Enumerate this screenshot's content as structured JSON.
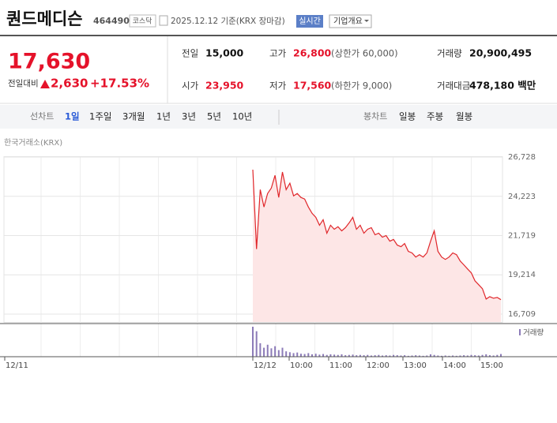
{
  "header": {
    "name": "퀀드메디슨",
    "code": "464490",
    "market": "코스닥",
    "date": "2025.12.12 기준(KRX 장마감)",
    "realtime": "실시간",
    "overview": "기업개요"
  },
  "summary": {
    "price": "17,630",
    "change_label": "전일대비",
    "change": "2,630",
    "change_rate": "+17.53%",
    "rows": [
      [
        {
          "label": "전일",
          "value": "15,000"
        },
        {
          "label": "고가",
          "value": "26,800",
          "extra": "(상한가 60,000)"
        },
        {
          "label": "거래량",
          "value": "20,900,495"
        }
      ],
      [
        {
          "label": "시가",
          "value": "23,950"
        },
        {
          "label": "저가",
          "value": "17,560",
          "extra": "(하한가 9,000)"
        },
        {
          "label": "거래대금",
          "value": "478,180 백만"
        }
      ]
    ]
  },
  "tabs": {
    "line_label": "선차트",
    "line": [
      "1일",
      "1주일",
      "3개월",
      "1년",
      "3년",
      "5년",
      "10년"
    ],
    "candle_label": "봉차트",
    "candle": [
      "일봉",
      "주봉",
      "월봉"
    ]
  },
  "chart_data": {
    "type": "line",
    "source": "한국거래소(KRX)",
    "x_tick_labels": [
      "12/11",
      "12/12",
      "10:00",
      "11:00",
      "12:00",
      "13:00",
      "14:00",
      "15:00"
    ],
    "series": [
      {
        "name": "price",
        "color": "#e0262a",
        "values": [
          25920,
          20860,
          24650,
          23540,
          24400,
          24750,
          25560,
          24150,
          25770,
          24650,
          25060,
          24250,
          24400,
          24150,
          24050,
          23540,
          23140,
          22880,
          22380,
          22730,
          21870,
          22380,
          22120,
          22280,
          22020,
          22220,
          22530,
          22880,
          22120,
          22380,
          21870,
          22120,
          22220,
          21770,
          21870,
          21620,
          21720,
          21360,
          21470,
          21110,
          21010,
          21210,
          20710,
          20610,
          20350,
          20500,
          20350,
          20610,
          21360,
          22020,
          20710,
          20350,
          20200,
          20350,
          20610,
          20500,
          20100,
          19850,
          19590,
          19340,
          18830,
          18580,
          18330,
          17670,
          17820,
          17720,
          17770,
          17630
        ]
      },
      {
        "name": "거래량",
        "color": "#8c7bb8",
        "values": [
          100,
          85,
          45,
          30,
          40,
          28,
          35,
          22,
          30,
          18,
          15,
          12,
          14,
          10,
          9,
          12,
          8,
          10,
          7,
          9,
          6,
          8,
          7,
          6,
          8,
          5,
          6,
          7,
          5,
          6,
          5,
          6,
          4,
          5,
          6,
          4,
          5,
          4,
          6,
          5,
          4,
          5,
          3,
          4,
          5,
          4,
          3,
          4,
          8,
          6,
          4,
          3,
          4,
          3,
          4,
          3,
          4,
          5,
          4,
          6,
          5,
          4,
          6,
          8,
          5,
          4,
          6,
          9
        ]
      }
    ],
    "ylim": [
      16709,
      26728
    ],
    "yticks": [
      {
        "value": 16709,
        "label": "16,709"
      },
      {
        "value": 19214,
        "label": "19,214"
      },
      {
        "value": 21719,
        "label": "21,719"
      },
      {
        "value": 24223,
        "label": "24,223"
      },
      {
        "value": 26728,
        "label": "26,728"
      }
    ],
    "grid": true
  }
}
